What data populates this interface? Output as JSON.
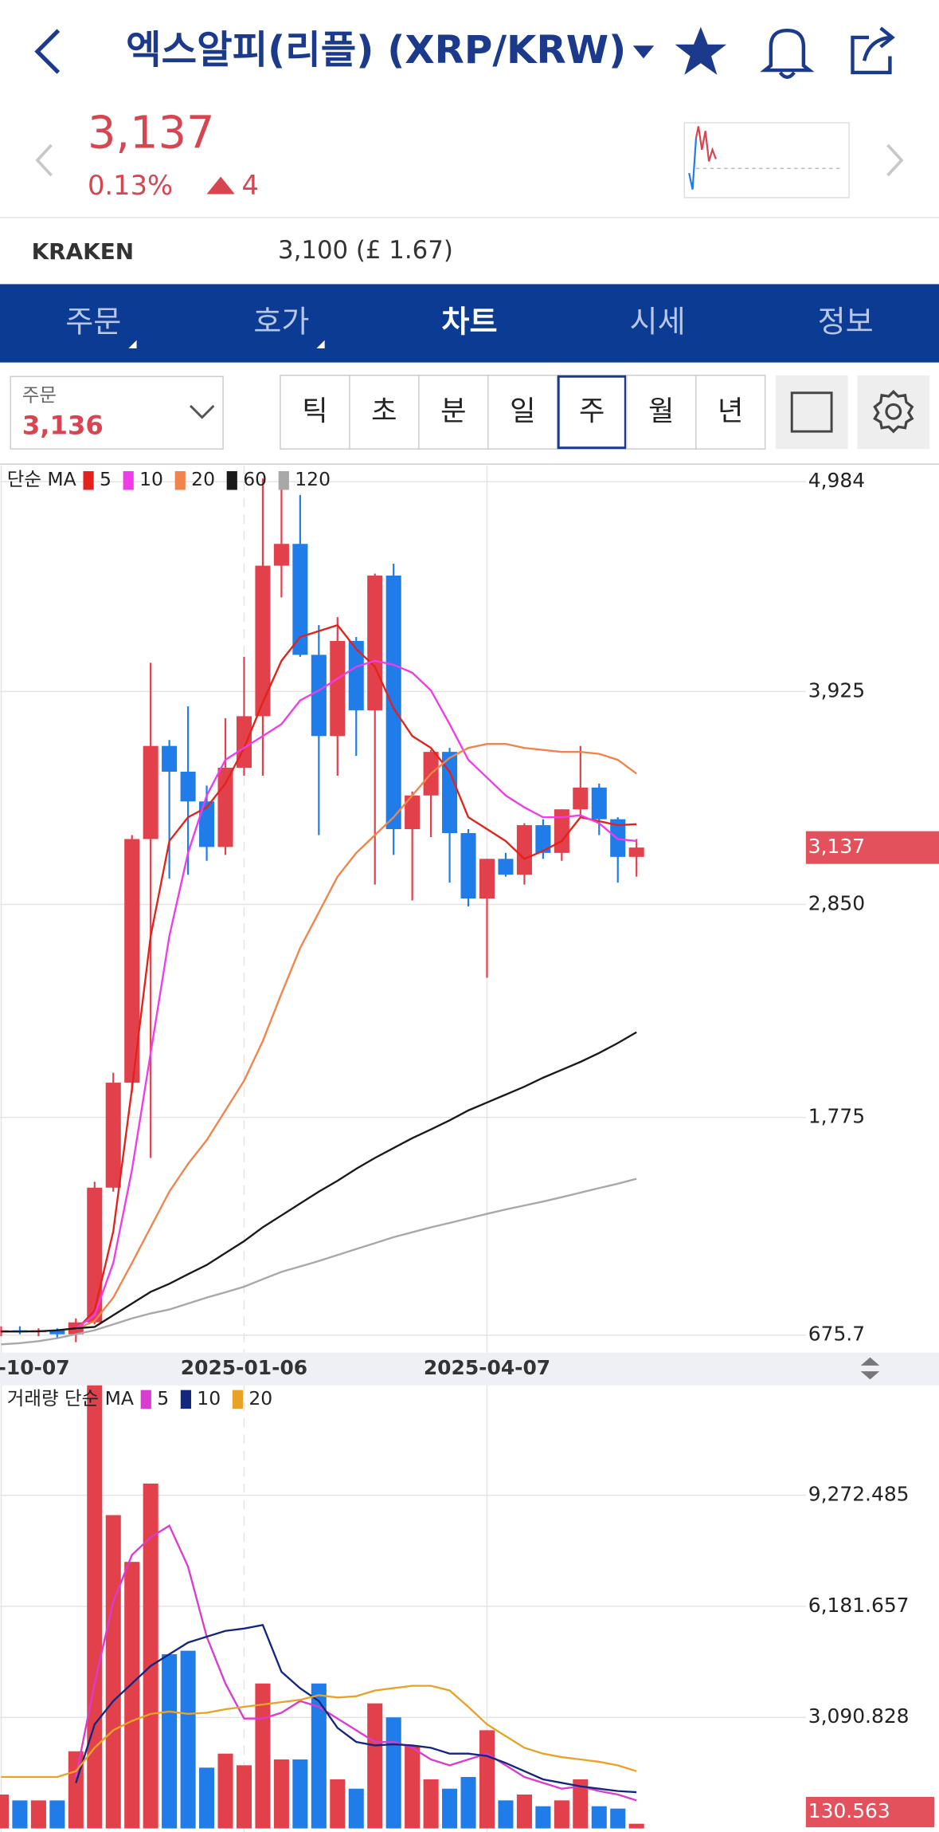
{
  "header": {
    "title": "엑스알피(리플) (XRP/KRW)"
  },
  "quote": {
    "price": "3,137",
    "change_pct": "0.13%",
    "change": "4",
    "exchange": "KRAKEN",
    "exchange_price": "3,100 (£ 1.67)"
  },
  "tabs": [
    {
      "label": "주문"
    },
    {
      "label": "호가"
    },
    {
      "label": "차트",
      "selected": true
    },
    {
      "label": "시세"
    },
    {
      "label": "정보"
    }
  ],
  "order": {
    "label": "주문",
    "price": "3,136"
  },
  "periods": [
    {
      "label": "틱"
    },
    {
      "label": "초"
    },
    {
      "label": "분"
    },
    {
      "label": "일"
    },
    {
      "label": "주",
      "selected": true
    },
    {
      "label": "월"
    },
    {
      "label": "년"
    }
  ],
  "chart_data": [
    {
      "type": "candlestick",
      "legend_title": "단순 MA",
      "categories": [
        "-10-07",
        null,
        null,
        null,
        null,
        null,
        null,
        null,
        null,
        null,
        null,
        null,
        null,
        "2025-01-06",
        null,
        null,
        null,
        null,
        null,
        null,
        null,
        null,
        null,
        null,
        null,
        null,
        "2025-04-07",
        null,
        null,
        null,
        null,
        null,
        null,
        null,
        null
      ],
      "open": [
        690,
        700,
        690,
        700,
        680,
        740,
        1420,
        1950,
        3180,
        3650,
        3520,
        3370,
        3140,
        3540,
        3800,
        4560,
        4670,
        4110,
        3700,
        4180,
        3830,
        4510,
        3230,
        3400,
        3620,
        3210,
        2880,
        3080,
        3000,
        3250,
        3110,
        3330,
        3440,
        3280,
        3090
      ],
      "high": [
        720,
        720,
        710,
        710,
        760,
        1450,
        2000,
        3200,
        4070,
        3680,
        3850,
        3450,
        3790,
        4100,
        5000,
        4990,
        4917,
        4260,
        4300,
        4200,
        4520,
        4570,
        3420,
        3630,
        3640,
        3230,
        3080,
        3110,
        3260,
        3280,
        3330,
        3650,
        3460,
        3290,
        3180
      ],
      "low": [
        670,
        680,
        670,
        660,
        640,
        730,
        1400,
        1900,
        1570,
        2980,
        3000,
        3070,
        3100,
        3500,
        3500,
        4400,
        4100,
        3200,
        3500,
        3600,
        2950,
        3100,
        2870,
        3190,
        2960,
        2840,
        2480,
        2990,
        2950,
        3080,
        3070,
        3290,
        3200,
        2960,
        2990
      ],
      "close": [
        700,
        690,
        700,
        680,
        740,
        1420,
        1950,
        3180,
        3650,
        3520,
        3370,
        3140,
        3540,
        3800,
        4560,
        4670,
        4110,
        3700,
        4180,
        3830,
        4510,
        3230,
        3400,
        3620,
        3210,
        2880,
        3080,
        3000,
        3250,
        3110,
        3330,
        3440,
        3280,
        3090,
        3137
      ],
      "up_color": "#e2404b",
      "down_color": "#1f7ce8",
      "series": [
        {
          "name": "5",
          "color": "#e3221c",
          "values": [
            null,
            null,
            null,
            null,
            700,
            800,
            1200,
            1920,
            2690,
            3170,
            3290,
            3340,
            3460,
            3640,
            3870,
            4080,
            4200,
            4230,
            4260,
            4140,
            4050,
            3840,
            3700,
            3640,
            3520,
            3290,
            3230,
            3170,
            3080,
            3120,
            3170,
            3290,
            3270,
            3250,
            3255
          ]
        },
        {
          "name": "10",
          "color": "#f03ce8",
          "values": [
            null,
            null,
            null,
            null,
            710,
            776,
            1040,
            1510,
            2100,
            2690,
            3110,
            3400,
            3580,
            3640,
            3700,
            3760,
            3880,
            3930,
            3990,
            4050,
            4080,
            4060,
            4020,
            3930,
            3760,
            3580,
            3490,
            3400,
            3340,
            3290,
            3290,
            3300,
            3260,
            3180,
            3170
          ]
        },
        {
          "name": "20",
          "color": "#f0844a",
          "values": [
            null,
            null,
            null,
            null,
            705,
            747,
            865,
            1040,
            1220,
            1400,
            1540,
            1660,
            1810,
            1960,
            2160,
            2400,
            2630,
            2810,
            2990,
            3110,
            3200,
            3290,
            3400,
            3510,
            3590,
            3640,
            3660,
            3660,
            3640,
            3630,
            3620,
            3620,
            3610,
            3580,
            3510
          ]
        },
        {
          "name": "60",
          "color": "#1a1a1a",
          "values": [
            694,
            694,
            695,
            700,
            710,
            717,
            776,
            835,
            894,
            935,
            983,
            1030,
            1090,
            1150,
            1220,
            1280,
            1340,
            1400,
            1455,
            1515,
            1570,
            1620,
            1670,
            1714,
            1760,
            1810,
            1850,
            1890,
            1930,
            1975,
            2015,
            2055,
            2100,
            2150,
            2205
          ]
        },
        {
          "name": "120",
          "color": "#a8a8a8",
          "values": [
            629,
            635,
            645,
            660,
            680,
            700,
            730,
            760,
            785,
            805,
            835,
            865,
            892,
            920,
            958,
            995,
            1022,
            1050,
            1080,
            1110,
            1140,
            1170,
            1195,
            1220,
            1242,
            1265,
            1288,
            1310,
            1330,
            1350,
            1372,
            1395,
            1418,
            1440,
            1465
          ]
        }
      ],
      "ylim": [
        675.7,
        4984
      ],
      "yticks": [
        675.7,
        {
          "value": 1775,
          "label": "1,775"
        },
        {
          "value": 2850,
          "label": "2,850"
        },
        {
          "value": 3925,
          "label": "3,925"
        },
        {
          "value": 4984,
          "label": "4,984"
        }
      ],
      "price_marker": {
        "value": 3137,
        "label": "3,137"
      },
      "grid": true
    },
    {
      "type": "bar",
      "legend_title": "거래량 단순 MA",
      "values": [
        943,
        780,
        780,
        780,
        2147,
        12500,
        8719,
        7418,
        9598,
        4848,
        4945,
        1692,
        2082,
        1757,
        4034,
        1920,
        1920,
        4034,
        1366,
        1106,
        3481,
        3091,
        2310,
        1366,
        1106,
        1432,
        2733,
        781,
        943,
        618,
        781,
        1366,
        618,
        553,
        130.563
      ],
      "series": [
        {
          "name": "5",
          "color": "#d93ccf",
          "values": [
            null,
            null,
            null,
            null,
            1430,
            4034,
            6312,
            7613,
            8101,
            8427,
            7288,
            5336,
            4034,
            3058,
            3058,
            3220,
            3546,
            3384,
            3058,
            2733,
            2408,
            2408,
            2245,
            1920,
            1757,
            1920,
            2082,
            1757,
            1432,
            1269,
            1106,
            1171,
            1041,
            943,
            781
          ]
        },
        {
          "name": "10",
          "color": "#14277e",
          "values": [
            null,
            null,
            null,
            null,
            1269,
            2896,
            3546,
            4034,
            4522,
            4848,
            5173,
            5336,
            5498,
            5563,
            5661,
            4360,
            3900,
            3546,
            2798,
            2408,
            2310,
            2343,
            2310,
            2245,
            2082,
            2082,
            2017,
            1822,
            1594,
            1366,
            1269,
            1171,
            1106,
            1041,
            1009
          ]
        },
        {
          "name": "20",
          "color": "#e8a227",
          "values": [
            1432,
            1432,
            1432,
            1432,
            1594,
            2245,
            2733,
            2993,
            3188,
            3253,
            3188,
            3220,
            3318,
            3384,
            3449,
            3514,
            3579,
            3709,
            3644,
            3680,
            3839,
            3904,
            3969,
            3969,
            3839,
            3384,
            2896,
            2570,
            2245,
            2082,
            1985,
            1920,
            1855,
            1757,
            1594
          ]
        }
      ],
      "ylim": [
        0,
        12330
      ],
      "yticks": [
        {
          "value": 3090.828,
          "label": "3,090.828"
        },
        {
          "value": 6181.657,
          "label": "6,181.657"
        },
        {
          "value": 9272.485,
          "label": "9,272.485"
        }
      ],
      "grid": true
    }
  ]
}
